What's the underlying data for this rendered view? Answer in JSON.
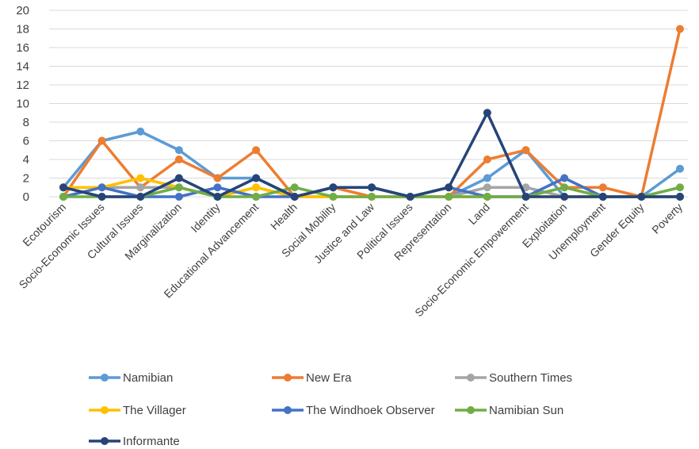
{
  "chart_data": {
    "type": "line",
    "title": "",
    "xlabel": "",
    "ylabel": "",
    "ylim": [
      0,
      20
    ],
    "yticks": [
      0,
      2,
      4,
      6,
      8,
      10,
      12,
      14,
      16,
      18,
      20
    ],
    "grid": true,
    "legend_position": "bottom",
    "categories": [
      "Ecotourism",
      "Socio-Economic Issues",
      "Cultural Issues",
      "Marginalization",
      "Identity",
      "Educational Advancement",
      "Health",
      "Social Mobility",
      "Justice and Law",
      "Political Issues",
      "Representation",
      "Land",
      "Socio-Economic Empowerment",
      "Exploitation",
      "Unemployment",
      "Gender Equity",
      "Poverty"
    ],
    "series": [
      {
        "name": "Namibian",
        "color": "#5b9bd5",
        "values": [
          1,
          6,
          7,
          5,
          2,
          2,
          0,
          1,
          1,
          0,
          0,
          2,
          5,
          0,
          0,
          0,
          3
        ]
      },
      {
        "name": "New Era",
        "color": "#ed7d31",
        "values": [
          0,
          6,
          1,
          4,
          2,
          5,
          0,
          1,
          0,
          0,
          0,
          4,
          5,
          1,
          1,
          0,
          18
        ]
      },
      {
        "name": "Southern Times",
        "color": "#a5a5a5",
        "values": [
          1,
          1,
          1,
          1,
          0,
          1,
          0,
          0,
          0,
          0,
          0,
          1,
          1,
          0,
          0,
          0,
          0
        ]
      },
      {
        "name": "The Villager",
        "color": "#ffc000",
        "values": [
          1,
          1,
          2,
          1,
          0,
          1,
          0,
          0,
          0,
          0,
          0,
          0,
          0,
          0,
          0,
          0,
          0
        ]
      },
      {
        "name": "The Windhoek Observer",
        "color": "#4472c4",
        "values": [
          0,
          1,
          0,
          0,
          1,
          0,
          0,
          1,
          1,
          0,
          1,
          0,
          0,
          2,
          0,
          0,
          0
        ]
      },
      {
        "name": "Namibian Sun",
        "color": "#70ad47",
        "values": [
          0,
          0,
          0,
          1,
          0,
          0,
          1,
          0,
          0,
          0,
          0,
          0,
          0,
          1,
          0,
          0,
          1
        ]
      },
      {
        "name": "Informante",
        "color": "#264478",
        "values": [
          1,
          0,
          0,
          2,
          0,
          2,
          0,
          1,
          1,
          0,
          1,
          9,
          0,
          0,
          0,
          0,
          0
        ]
      }
    ]
  }
}
